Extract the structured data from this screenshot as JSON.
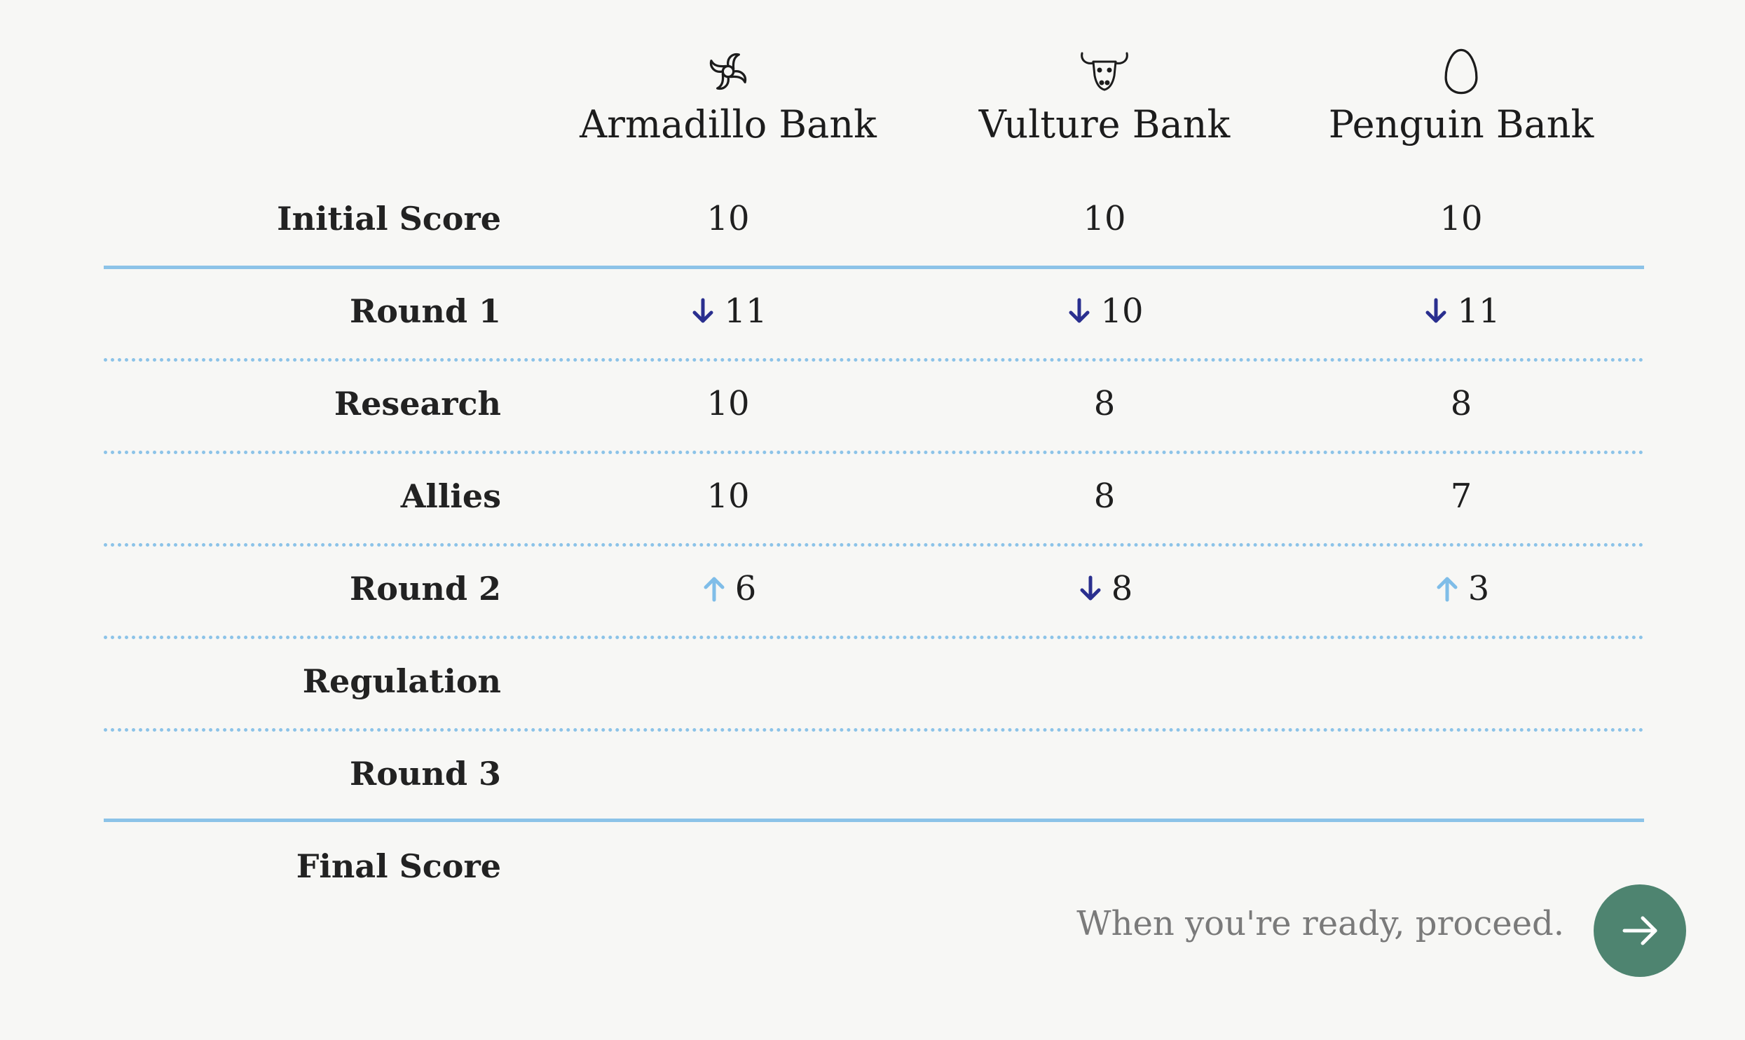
{
  "banks": [
    {
      "name": "Armadillo Bank",
      "icon": "shell-spiral-icon"
    },
    {
      "name": "Vulture Bank",
      "icon": "bull-head-icon"
    },
    {
      "name": "Penguin Bank",
      "icon": "egg-icon"
    }
  ],
  "rows": [
    {
      "label": "Initial Score",
      "values": [
        {
          "value": "10",
          "trend": "none"
        },
        {
          "value": "10",
          "trend": "none"
        },
        {
          "value": "10",
          "trend": "none"
        }
      ]
    },
    {
      "label": "Round 1",
      "values": [
        {
          "value": "11",
          "trend": "down"
        },
        {
          "value": "10",
          "trend": "down"
        },
        {
          "value": "11",
          "trend": "down"
        }
      ]
    },
    {
      "label": "Research",
      "values": [
        {
          "value": "10",
          "trend": "none"
        },
        {
          "value": "8",
          "trend": "none"
        },
        {
          "value": "8",
          "trend": "none"
        }
      ]
    },
    {
      "label": "Allies",
      "values": [
        {
          "value": "10",
          "trend": "none"
        },
        {
          "value": "8",
          "trend": "none"
        },
        {
          "value": "7",
          "trend": "none"
        }
      ]
    },
    {
      "label": "Round 2",
      "values": [
        {
          "value": "6",
          "trend": "up"
        },
        {
          "value": "8",
          "trend": "down"
        },
        {
          "value": "3",
          "trend": "up"
        }
      ]
    },
    {
      "label": "Regulation",
      "values": [
        {
          "value": "",
          "trend": "none"
        },
        {
          "value": "",
          "trend": "none"
        },
        {
          "value": "",
          "trend": "none"
        }
      ]
    },
    {
      "label": "Round 3",
      "values": [
        {
          "value": "",
          "trend": "none"
        },
        {
          "value": "",
          "trend": "none"
        },
        {
          "value": "",
          "trend": "none"
        }
      ]
    },
    {
      "label": "Final Score",
      "values": [
        {
          "value": "",
          "trend": "none"
        },
        {
          "value": "",
          "trend": "none"
        },
        {
          "value": "",
          "trend": "none"
        }
      ]
    }
  ],
  "footer": {
    "proceed_text": "When you're ready, proceed.",
    "button_icon": "arrow-right-icon"
  },
  "colors": {
    "trend_down": "#2a2f8f",
    "trend_up": "#7fbde8",
    "divider": "#8cc3e8",
    "button": "#4e8470",
    "background": "#f7f7f5"
  }
}
